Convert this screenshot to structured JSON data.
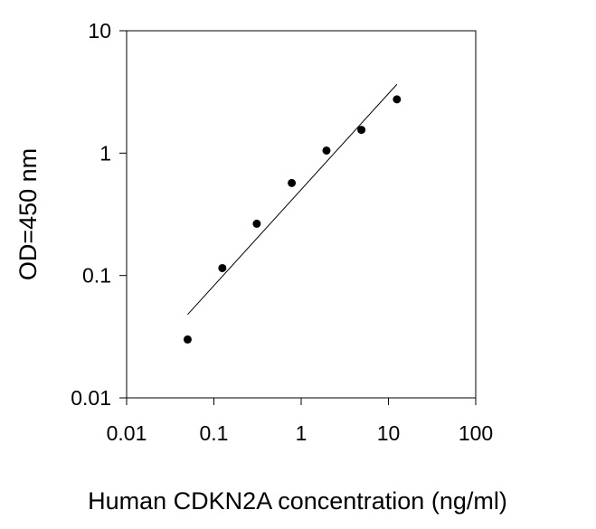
{
  "chart_data": {
    "type": "scatter",
    "xlabel": "Human CDKN2A concentration (ng/ml)",
    "ylabel": "OD=450 nm",
    "x_scale": "log",
    "y_scale": "log",
    "xlim": [
      0.01,
      100
    ],
    "ylim": [
      0.01,
      10
    ],
    "x_ticks": [
      "0.01",
      "0.1",
      "1",
      "10",
      "100"
    ],
    "y_ticks": [
      "0.01",
      "0.1",
      "1",
      "10"
    ],
    "grid": false,
    "series": [
      {
        "points": [
          {
            "x": 0.05,
            "y": 0.03
          },
          {
            "x": 0.125,
            "y": 0.115
          },
          {
            "x": 0.31,
            "y": 0.265
          },
          {
            "x": 0.78,
            "y": 0.57
          },
          {
            "x": 1.95,
            "y": 1.05
          },
          {
            "x": 4.9,
            "y": 1.55
          },
          {
            "x": 12.5,
            "y": 2.75
          }
        ]
      }
    ],
    "fit_line": {
      "x": [
        0.05,
        12.5
      ],
      "y": [
        0.048,
        3.65
      ]
    },
    "colors": {
      "points": "#000000",
      "line": "#000000",
      "axis": "#000000"
    }
  }
}
